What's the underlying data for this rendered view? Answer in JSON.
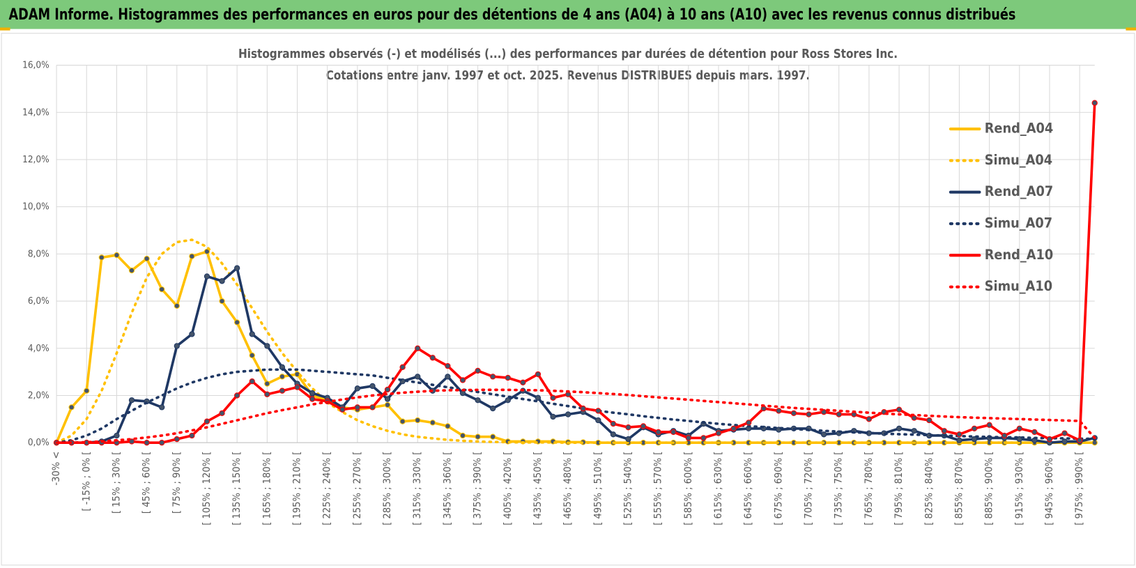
{
  "header": {
    "title": "ADAM Informe. Histogrammes des performances en euros pour des détentions de 4 ans (A04) à 10 ans (A10) avec les revenus connus distribués"
  },
  "chart_data": {
    "type": "line",
    "title": "Histogrammes observés (-) et modélisés (...) des performances par durées de détention pour Ross Stores Inc.",
    "subtitle": "Cotations entre janv. 1997 et oct. 2025.  Revenus DISTRIBUES depuis mars. 1997.",
    "categories": [
      "-30% <",
      null,
      "[ -15% ; 0% [",
      null,
      "[ 15% ; 30% [",
      null,
      "[ 45% ; 60% [",
      null,
      "[ 75% ; 90% [",
      null,
      "[ 105% ; 120% [",
      null,
      "[ 135% ; 150% [",
      null,
      "[ 165% ; 180% [",
      null,
      "[ 195% ; 210% [",
      null,
      "[ 225% ; 240% [",
      null,
      "[ 255% ; 270% [",
      null,
      "[ 285% ; 300% [",
      null,
      "[ 315% ; 330% [",
      null,
      "[ 345% ; 360% [",
      null,
      "[ 375% ; 390% [",
      null,
      "[ 405% ; 420% [",
      null,
      "[ 435% ; 450% [",
      null,
      "[ 465% ; 480% [",
      null,
      "[ 495% ; 510% [",
      null,
      "[ 525% ; 540% [",
      null,
      "[ 555% ; 570% [",
      null,
      "[ 585% ; 600% [",
      null,
      "[ 615% ; 630% [",
      null,
      "[ 645% ; 660% [",
      null,
      "[ 675% ; 690% [",
      null,
      "[ 705% ; 720% [",
      null,
      "[ 735% ; 750% [",
      null,
      "[ 765% ; 780% [",
      null,
      "[ 795% ; 810% [",
      null,
      "[ 825% ; 840% [",
      null,
      "[ 855% ; 870% [",
      null,
      "[ 885% ; 900% [",
      null,
      "[ 915% ; 930% [",
      null,
      "[ 945% ; 960% [",
      null,
      "[ 975% ; 990% [",
      null
    ],
    "series": [
      {
        "name": "Rend_A04",
        "color": "#ffc000",
        "style": "solid",
        "markers": true,
        "values": [
          0,
          1.5,
          2.2,
          7.85,
          7.95,
          7.3,
          7.8,
          6.5,
          5.8,
          7.9,
          8.1,
          6.0,
          5.1,
          3.7,
          2.5,
          2.8,
          2.9,
          2.0,
          1.8,
          1.5,
          1.4,
          1.5,
          1.6,
          0.9,
          0.95,
          0.85,
          0.7,
          0.3,
          0.25,
          0.25,
          0.05,
          0.05,
          0.05,
          0.05,
          0.02,
          0.02,
          0,
          0,
          0,
          0,
          0,
          0,
          0,
          0,
          0,
          0,
          0,
          0,
          0,
          0,
          0,
          0,
          0,
          0,
          0,
          0,
          0,
          0,
          0,
          0,
          0,
          0,
          0,
          0,
          0,
          0,
          0,
          0,
          0,
          0
        ]
      },
      {
        "name": "Simu_A04",
        "color": "#ffc000",
        "style": "dotted",
        "markers": false,
        "values": [
          0,
          0.3,
          1.0,
          2.2,
          3.8,
          5.5,
          7.0,
          8.0,
          8.5,
          8.6,
          8.3,
          7.6,
          6.7,
          5.7,
          4.7,
          3.8,
          3.0,
          2.3,
          1.7,
          1.3,
          0.95,
          0.7,
          0.5,
          0.35,
          0.25,
          0.18,
          0.12,
          0.08,
          0.05,
          0.03,
          0.02,
          0.01,
          0.01,
          0.01,
          0,
          0,
          0,
          0,
          0,
          0,
          0,
          0,
          0,
          0,
          0,
          0,
          0,
          0,
          0,
          0,
          0,
          0,
          0,
          0,
          0,
          0,
          0,
          0,
          0,
          0,
          0,
          0,
          0,
          0,
          0,
          0,
          0,
          0,
          0,
          0
        ]
      },
      {
        "name": "Rend_A07",
        "color": "#1f3864",
        "style": "solid",
        "markers": true,
        "values": [
          0,
          0,
          0,
          0.05,
          0.3,
          1.8,
          1.75,
          1.5,
          4.1,
          4.6,
          7.05,
          6.85,
          7.4,
          4.6,
          4.1,
          3.2,
          2.5,
          2.1,
          1.9,
          1.5,
          2.3,
          2.4,
          1.85,
          2.6,
          2.8,
          2.2,
          2.8,
          2.1,
          1.8,
          1.45,
          1.8,
          2.2,
          1.9,
          1.1,
          1.2,
          1.3,
          0.95,
          0.35,
          0.15,
          0.65,
          0.35,
          0.5,
          0.3,
          0.8,
          0.5,
          0.55,
          0.6,
          0.6,
          0.55,
          0.6,
          0.6,
          0.35,
          0.4,
          0.5,
          0.4,
          0.4,
          0.6,
          0.5,
          0.3,
          0.3,
          0.1,
          0.15,
          0.2,
          0.2,
          0.15,
          0.1,
          0.0,
          0.05,
          0.05,
          0.2
        ]
      },
      {
        "name": "Simu_A07",
        "color": "#1f3864",
        "style": "dotted",
        "markers": false,
        "values": [
          0,
          0.1,
          0.3,
          0.6,
          1.0,
          1.35,
          1.7,
          2.0,
          2.3,
          2.55,
          2.75,
          2.9,
          3.0,
          3.05,
          3.1,
          3.1,
          3.1,
          3.05,
          3.0,
          2.95,
          2.9,
          2.85,
          2.75,
          2.65,
          2.55,
          2.45,
          2.35,
          2.25,
          2.15,
          2.05,
          1.95,
          1.85,
          1.75,
          1.65,
          1.55,
          1.45,
          1.35,
          1.27,
          1.2,
          1.12,
          1.05,
          0.98,
          0.92,
          0.86,
          0.8,
          0.75,
          0.7,
          0.66,
          0.62,
          0.58,
          0.54,
          0.5,
          0.47,
          0.44,
          0.41,
          0.38,
          0.36,
          0.34,
          0.32,
          0.3,
          0.28,
          0.26,
          0.24,
          0.23,
          0.22,
          0.2,
          0.19,
          0.18,
          0.17,
          0.16
        ]
      },
      {
        "name": "Rend_A10",
        "color": "#ff0000",
        "style": "solid",
        "markers": true,
        "values": [
          0,
          0,
          0,
          0,
          0,
          0.05,
          0,
          0,
          0.15,
          0.3,
          0.9,
          1.25,
          2.0,
          2.6,
          2.05,
          2.2,
          2.35,
          1.85,
          1.75,
          1.4,
          1.5,
          1.5,
          2.25,
          3.2,
          4.0,
          3.6,
          3.25,
          2.65,
          3.05,
          2.8,
          2.75,
          2.55,
          2.9,
          1.9,
          2.05,
          1.45,
          1.35,
          0.8,
          0.65,
          0.7,
          0.45,
          0.45,
          0.2,
          0.2,
          0.4,
          0.6,
          0.85,
          1.45,
          1.35,
          1.25,
          1.2,
          1.3,
          1.2,
          1.2,
          1.0,
          1.3,
          1.4,
          1.05,
          0.95,
          0.5,
          0.35,
          0.6,
          0.75,
          0.3,
          0.6,
          0.45,
          0.15,
          0.4,
          0.1,
          14.4
        ]
      },
      {
        "name": "Simu_A10",
        "color": "#ff0000",
        "style": "dotted",
        "markers": false,
        "values": [
          0,
          0,
          0.02,
          0.05,
          0.1,
          0.15,
          0.22,
          0.3,
          0.4,
          0.52,
          0.65,
          0.8,
          0.95,
          1.1,
          1.25,
          1.38,
          1.5,
          1.62,
          1.73,
          1.83,
          1.92,
          2.0,
          2.06,
          2.12,
          2.16,
          2.2,
          2.22,
          2.23,
          2.24,
          2.24,
          2.24,
          2.23,
          2.22,
          2.2,
          2.17,
          2.14,
          2.1,
          2.06,
          2.02,
          1.97,
          1.92,
          1.87,
          1.82,
          1.77,
          1.72,
          1.67,
          1.62,
          1.57,
          1.52,
          1.47,
          1.43,
          1.39,
          1.35,
          1.31,
          1.27,
          1.23,
          1.2,
          1.17,
          1.14,
          1.11,
          1.08,
          1.06,
          1.04,
          1.02,
          1.0,
          0.98,
          0.96,
          0.94,
          0.92,
          0.2
        ]
      }
    ],
    "ylim": [
      0,
      16
    ],
    "yticks": [
      {
        "value": 0,
        "label": "0,0%"
      },
      {
        "value": 2,
        "label": "2,0%"
      },
      {
        "value": 4,
        "label": "4,0%"
      },
      {
        "value": 6,
        "label": "6,0%"
      },
      {
        "value": 8,
        "label": "8,0%"
      },
      {
        "value": 10,
        "label": "10,0%"
      },
      {
        "value": 12,
        "label": "12,0%"
      },
      {
        "value": 14,
        "label": "14,0%"
      },
      {
        "value": 16,
        "label": "16,0%"
      }
    ],
    "grid": true,
    "legend": "right"
  }
}
